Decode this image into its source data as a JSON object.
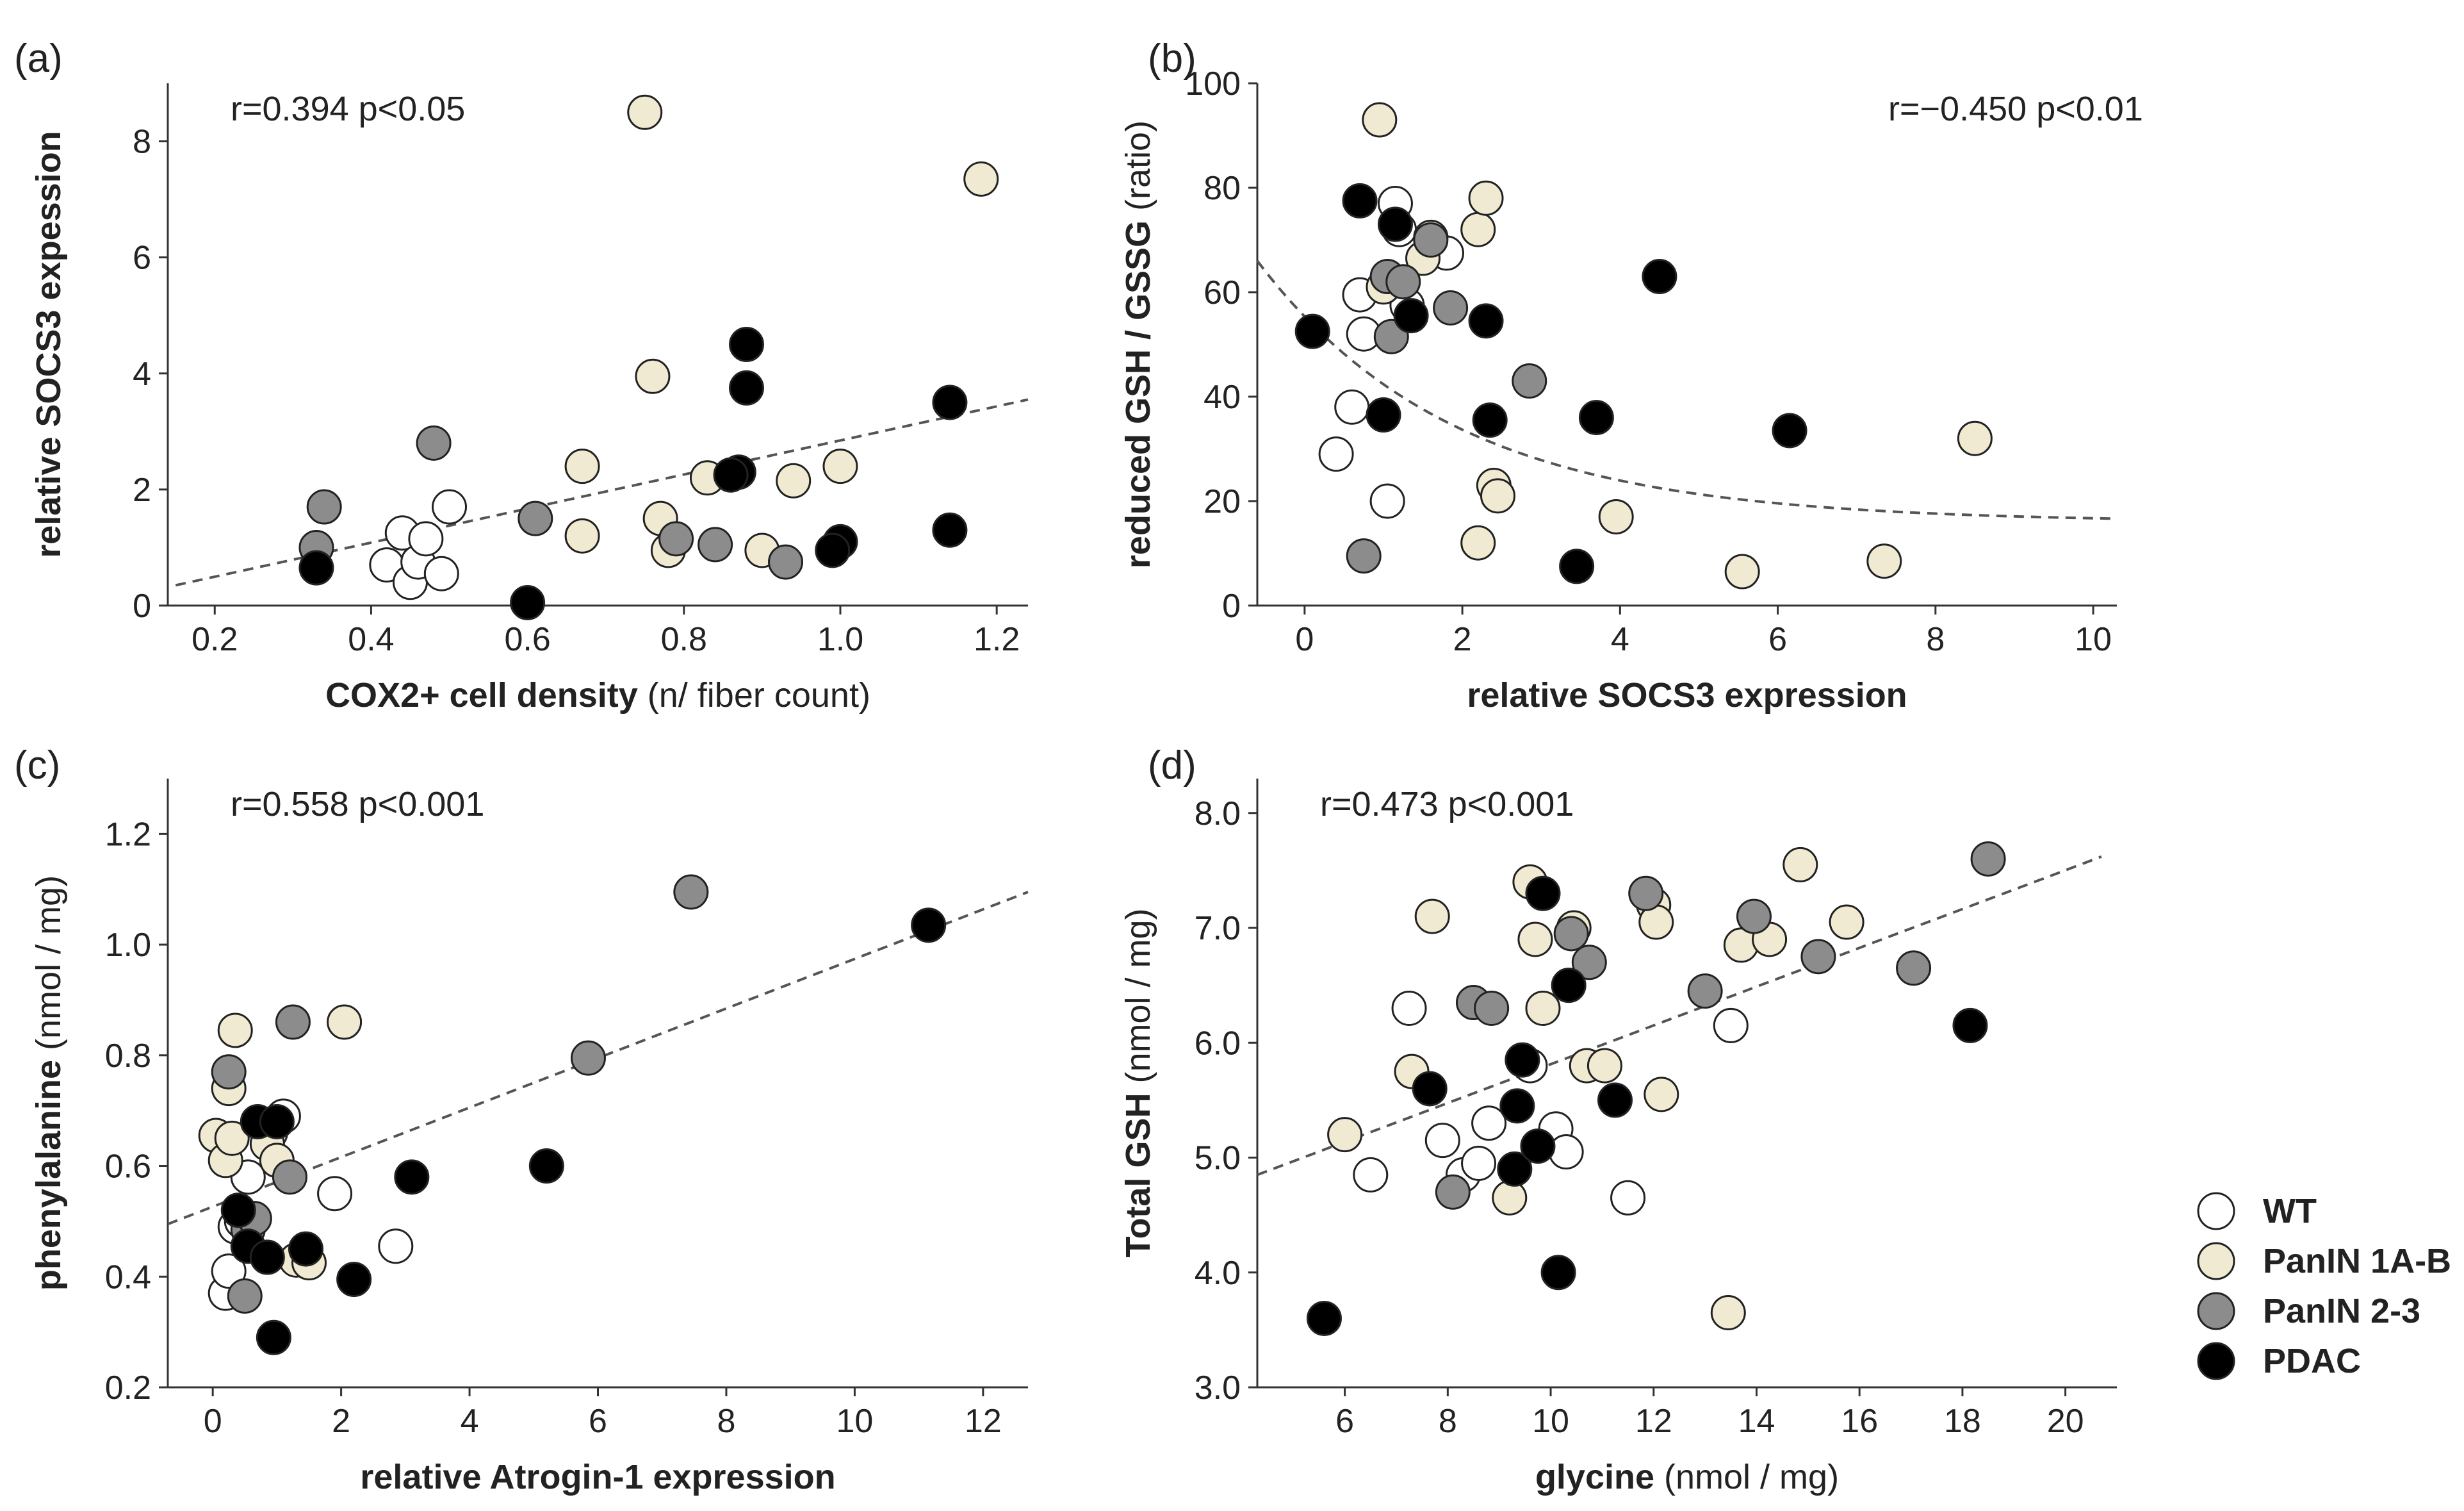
{
  "colors": {
    "WT": "#ffffff",
    "PanIN 1A-B": "#f0ead2",
    "PanIN 2-3": "#8c8c8c",
    "PDAC": "#000000"
  },
  "legend": [
    {
      "key": "WT",
      "label": "WT"
    },
    {
      "key": "PanIN 1A-B",
      "label": "PanIN 1A-B"
    },
    {
      "key": "PanIN 2-3",
      "label": "PanIN 2-3"
    },
    {
      "key": "PDAC",
      "label": "PDAC"
    }
  ],
  "chart_data": [
    {
      "panel": "(a)",
      "type": "scatter",
      "stat": "r=0.394  p<0.05",
      "xlabel": "COX2+ cell density",
      "xunit": "(n/ fiber count)",
      "ylabel": "relative SOCS3 expession",
      "yunit": "",
      "xlim": [
        0.14,
        1.24
      ],
      "ylim": [
        0,
        9
      ],
      "xticks": [
        0.2,
        0.4,
        0.6,
        0.8,
        1.0,
        1.2
      ],
      "xticklabels": [
        "0.2",
        "0.4",
        "0.6",
        "0.8",
        "1.0",
        "1.2"
      ],
      "yticks": [
        0,
        2,
        4,
        6,
        8
      ],
      "yticklabels": [
        "0",
        "2",
        "4",
        "6",
        "8"
      ],
      "fit": {
        "type": "linear",
        "from": [
          0.15,
          0.35
        ],
        "to": [
          1.24,
          3.55
        ]
      },
      "series": [
        {
          "name": "WT",
          "points": [
            [
              0.42,
              0.7
            ],
            [
              0.44,
              1.25
            ],
            [
              0.45,
              0.4
            ],
            [
              0.46,
              0.75
            ],
            [
              0.47,
              1.15
            ],
            [
              0.49,
              0.55
            ],
            [
              0.5,
              1.7
            ]
          ]
        },
        {
          "name": "PanIN 1A-B",
          "points": [
            [
              0.75,
              8.5
            ],
            [
              1.18,
              7.35
            ],
            [
              0.76,
              3.95
            ],
            [
              0.67,
              2.4
            ],
            [
              0.67,
              1.2
            ],
            [
              0.77,
              1.5
            ],
            [
              0.78,
              0.95
            ],
            [
              0.83,
              2.2
            ],
            [
              0.9,
              0.95
            ],
            [
              0.94,
              2.15
            ],
            [
              1.0,
              2.4
            ]
          ]
        },
        {
          "name": "PanIN 2-3",
          "points": [
            [
              0.48,
              2.8
            ],
            [
              0.34,
              1.7
            ],
            [
              0.33,
              1.0
            ],
            [
              0.61,
              1.5
            ],
            [
              0.79,
              1.15
            ],
            [
              0.84,
              1.05
            ],
            [
              0.93,
              0.75
            ]
          ]
        },
        {
          "name": "PDAC",
          "points": [
            [
              0.33,
              0.65
            ],
            [
              0.6,
              0.05
            ],
            [
              0.88,
              4.5
            ],
            [
              0.88,
              3.75
            ],
            [
              0.87,
              2.3
            ],
            [
              0.86,
              2.25
            ],
            [
              1.14,
              3.5
            ],
            [
              1.14,
              1.3
            ],
            [
              1.0,
              1.1
            ],
            [
              0.99,
              0.95
            ]
          ]
        }
      ]
    },
    {
      "panel": "(b)",
      "type": "scatter",
      "stat": "r=−0.450  p<0.01",
      "xlabel": "relative SOCS3 expression",
      "xunit": "",
      "ylabel": "reduced GSH / GSSG",
      "yunit": "(ratio)",
      "xlim": [
        -0.6,
        10.3
      ],
      "ylim": [
        0,
        100
      ],
      "xticks": [
        0,
        2,
        4,
        6,
        8,
        10
      ],
      "xticklabels": [
        "0",
        "2",
        "4",
        "6",
        "8",
        "10"
      ],
      "yticks": [
        0,
        20,
        40,
        60,
        80,
        100
      ],
      "yticklabels": [
        "0",
        "20",
        "40",
        "60",
        "80",
        "100"
      ],
      "fit": {
        "type": "exp-decay",
        "plateau": 16,
        "span": 50,
        "k": 0.4
      },
      "series": [
        {
          "name": "WT",
          "points": [
            [
              0.4,
              29
            ],
            [
              0.6,
              38
            ],
            [
              0.7,
              59.5
            ],
            [
              0.75,
              52
            ],
            [
              1.05,
              20
            ],
            [
              1.15,
              77
            ],
            [
              1.2,
              72
            ],
            [
              1.3,
              57.5
            ],
            [
              1.8,
              67.5
            ]
          ]
        },
        {
          "name": "PanIN 1A-B",
          "points": [
            [
              0.95,
              93
            ],
            [
              1.0,
              61
            ],
            [
              1.5,
              66.5
            ],
            [
              1.6,
              70.5
            ],
            [
              2.2,
              72
            ],
            [
              2.3,
              78
            ],
            [
              2.2,
              12
            ],
            [
              2.4,
              23
            ],
            [
              2.45,
              21
            ],
            [
              3.95,
              17
            ],
            [
              5.55,
              6.5
            ],
            [
              7.35,
              8.5
            ],
            [
              8.5,
              32
            ]
          ]
        },
        {
          "name": "PanIN 2-3",
          "points": [
            [
              0.75,
              9.5
            ],
            [
              1.05,
              63
            ],
            [
              1.1,
              51.5
            ],
            [
              1.25,
              62
            ],
            [
              1.6,
              70
            ],
            [
              1.85,
              57
            ],
            [
              2.85,
              43
            ]
          ]
        },
        {
          "name": "PDAC",
          "points": [
            [
              0.1,
              52.5
            ],
            [
              0.7,
              77.5
            ],
            [
              1.0,
              36.5
            ],
            [
              1.15,
              73
            ],
            [
              1.35,
              55.5
            ],
            [
              2.3,
              54.5
            ],
            [
              2.35,
              35.5
            ],
            [
              3.45,
              7.5
            ],
            [
              3.7,
              36
            ],
            [
              4.5,
              63
            ],
            [
              6.15,
              33.5
            ]
          ]
        }
      ]
    },
    {
      "panel": "(c)",
      "type": "scatter",
      "stat": "r=0.558  p<0.001",
      "xlabel": "relative Atrogin-1 expression",
      "xunit": "",
      "ylabel": "phenylalanine",
      "yunit": "(nmol / mg)",
      "xlim": [
        -0.7,
        12.7
      ],
      "ylim": [
        0.2,
        1.3
      ],
      "xticks": [
        0,
        2,
        4,
        6,
        8,
        10,
        12
      ],
      "xticklabels": [
        "0",
        "2",
        "4",
        "6",
        "8",
        "10",
        "12"
      ],
      "yticks": [
        0.2,
        0.4,
        0.6,
        0.8,
        1.0,
        1.2
      ],
      "yticklabels": [
        "0.2",
        "0.4",
        "0.6",
        "0.8",
        "1.0",
        "1.2"
      ],
      "fit": {
        "type": "linear",
        "from": [
          -0.7,
          0.495
        ],
        "to": [
          12.7,
          1.095
        ]
      },
      "series": [
        {
          "name": "WT",
          "points": [
            [
              0.2,
              0.37
            ],
            [
              0.25,
              0.41
            ],
            [
              0.35,
              0.49
            ],
            [
              0.45,
              0.5
            ],
            [
              0.55,
              0.58
            ],
            [
              1.1,
              0.69
            ],
            [
              1.9,
              0.55
            ],
            [
              2.85,
              0.455
            ],
            [
              0.9,
              0.66
            ]
          ]
        },
        {
          "name": "PanIN 1A-B",
          "points": [
            [
              0.05,
              0.655
            ],
            [
              0.2,
              0.61
            ],
            [
              0.25,
              0.74
            ],
            [
              0.3,
              0.65
            ],
            [
              0.35,
              0.845
            ],
            [
              0.85,
              0.64
            ],
            [
              1.0,
              0.61
            ],
            [
              1.3,
              0.43
            ],
            [
              1.5,
              0.425
            ],
            [
              2.05,
              0.86
            ]
          ]
        },
        {
          "name": "PanIN 2-3",
          "points": [
            [
              0.25,
              0.77
            ],
            [
              0.5,
              0.365
            ],
            [
              0.55,
              0.485
            ],
            [
              0.65,
              0.505
            ],
            [
              1.2,
              0.58
            ],
            [
              1.25,
              0.86
            ],
            [
              5.85,
              0.795
            ],
            [
              7.45,
              1.095
            ]
          ]
        },
        {
          "name": "PDAC",
          "points": [
            [
              0.4,
              0.52
            ],
            [
              0.55,
              0.455
            ],
            [
              0.7,
              0.68
            ],
            [
              0.85,
              0.435
            ],
            [
              0.95,
              0.29
            ],
            [
              1.0,
              0.68
            ],
            [
              1.45,
              0.45
            ],
            [
              2.2,
              0.395
            ],
            [
              3.1,
              0.58
            ],
            [
              5.2,
              0.6
            ],
            [
              11.15,
              1.035
            ]
          ]
        }
      ]
    },
    {
      "panel": "(d)",
      "type": "scatter",
      "stat": "r=0.473  p<0.001",
      "xlabel": "glycine",
      "xunit": "(nmol / mg)",
      "ylabel": "Total GSH",
      "yunit": "(nmol / mg)",
      "xlim": [
        4.3,
        21
      ],
      "ylim": [
        3.0,
        8.3
      ],
      "xticks": [
        6,
        8,
        10,
        12,
        14,
        16,
        18,
        20
      ],
      "xticklabels": [
        "6",
        "8",
        "10",
        "12",
        "14",
        "16",
        "18",
        "20"
      ],
      "yticks": [
        3.0,
        4.0,
        5.0,
        6.0,
        7.0,
        8.0
      ],
      "yticklabels": [
        "3.0",
        "4.0",
        "5.0",
        "6.0",
        "7.0",
        "8.0"
      ],
      "fit": {
        "type": "linear",
        "from": [
          4.3,
          4.85
        ],
        "to": [
          20.7,
          7.62
        ]
      },
      "series": [
        {
          "name": "WT",
          "points": [
            [
              6.5,
              4.85
            ],
            [
              7.25,
              6.3
            ],
            [
              7.9,
              5.15
            ],
            [
              8.3,
              4.85
            ],
            [
              8.6,
              4.95
            ],
            [
              8.8,
              5.3
            ],
            [
              9.6,
              5.8
            ],
            [
              10.1,
              5.25
            ],
            [
              10.3,
              5.05
            ],
            [
              11.5,
              4.65
            ],
            [
              13.5,
              6.15
            ]
          ]
        },
        {
          "name": "PanIN 1A-B",
          "points": [
            [
              6.0,
              5.2
            ],
            [
              7.3,
              5.75
            ],
            [
              7.7,
              7.1
            ],
            [
              9.2,
              4.65
            ],
            [
              9.6,
              7.4
            ],
            [
              9.7,
              6.9
            ],
            [
              9.85,
              6.3
            ],
            [
              10.45,
              7.0
            ],
            [
              10.7,
              5.8
            ],
            [
              11.05,
              5.8
            ],
            [
              12.0,
              7.2
            ],
            [
              12.05,
              7.05
            ],
            [
              12.15,
              5.55
            ],
            [
              13.45,
              3.65
            ],
            [
              13.7,
              6.85
            ],
            [
              14.25,
              6.9
            ],
            [
              14.85,
              7.55
            ],
            [
              15.75,
              7.05
            ]
          ]
        },
        {
          "name": "PanIN 2-3",
          "points": [
            [
              8.1,
              4.7
            ],
            [
              8.5,
              6.35
            ],
            [
              8.85,
              6.3
            ],
            [
              10.4,
              6.95
            ],
            [
              10.75,
              6.7
            ],
            [
              11.85,
              7.3
            ],
            [
              13.0,
              6.45
            ],
            [
              13.95,
              7.1
            ],
            [
              15.2,
              6.75
            ],
            [
              17.05,
              6.65
            ],
            [
              18.5,
              7.6
            ]
          ]
        },
        {
          "name": "PDAC",
          "points": [
            [
              5.6,
              3.6
            ],
            [
              7.65,
              5.6
            ],
            [
              9.3,
              4.9
            ],
            [
              9.35,
              5.45
            ],
            [
              9.45,
              5.85
            ],
            [
              9.75,
              5.1
            ],
            [
              9.85,
              7.3
            ],
            [
              10.15,
              4.0
            ],
            [
              10.35,
              6.5
            ],
            [
              11.25,
              5.5
            ],
            [
              18.15,
              6.15
            ]
          ]
        }
      ]
    }
  ]
}
